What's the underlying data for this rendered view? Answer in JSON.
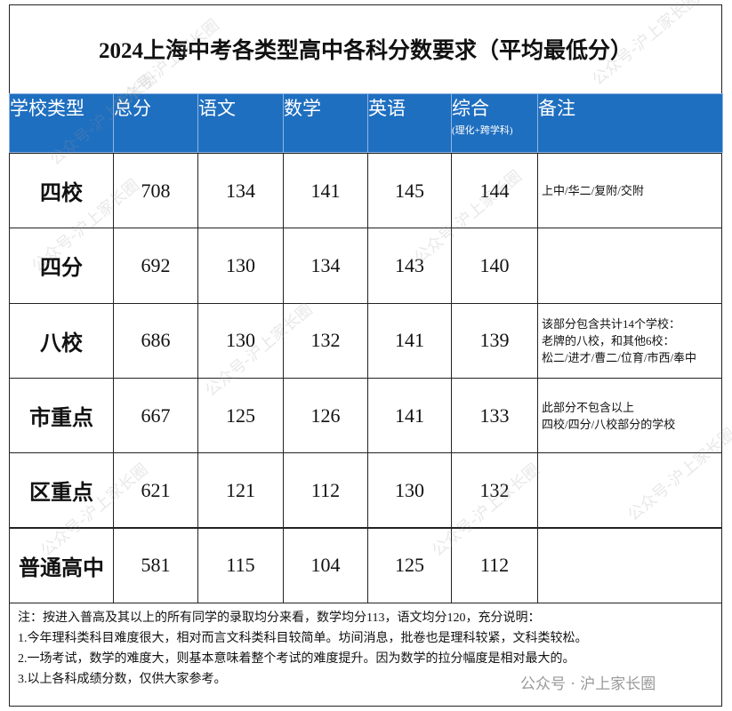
{
  "title": "2024上海中考各类型高中各科分数要求（平均最低分）",
  "table": {
    "header": [
      "学校类型",
      "总分",
      "语文",
      "数学",
      "英语",
      "综合",
      "备注"
    ],
    "header_sub": {
      "5": "(理化+跨学科)"
    },
    "rows": [
      [
        "四校",
        708,
        134,
        141,
        145,
        144
      ],
      [
        "四分",
        692,
        130,
        134,
        143,
        140
      ],
      [
        "八校",
        686,
        130,
        132,
        141,
        139
      ],
      [
        "市重点",
        667,
        125,
        126,
        141,
        133
      ],
      [
        "区重点",
        621,
        121,
        112,
        130,
        132
      ],
      [
        "普通高中",
        581,
        115,
        104,
        125,
        112
      ]
    ],
    "remarks": [
      [
        "上中/华二/复附/交附"
      ],
      [],
      [
        "该部分包含共计14个学校：",
        "老牌的八校，和其他6校：",
        "松二/进才/曹二/位育/市西/奉中"
      ],
      [
        "此部分不包含以上",
        "四校/四分/八校部分的学校"
      ],
      [],
      []
    ]
  },
  "notes": [
    "注：按进入普高及其以上的所有同学的录取均分来看，数学均分113，语文均分120，充分说明：",
    "1.今年理科类科目难度很大，相对而言文科类科目较简单。坊间消息，批卷也是理科较紧，文科类较松。",
    "2.一场考试，数学的难度大，则基本意味着整个考试的难度提升。因为数学的拉分幅度是相对最大的。",
    "3.以上各科成绩分数，仅供大家参考。"
  ],
  "watermark": "公众号-沪上家长圈",
  "footer_watermark": "公众号 · 沪上家长圈"
}
